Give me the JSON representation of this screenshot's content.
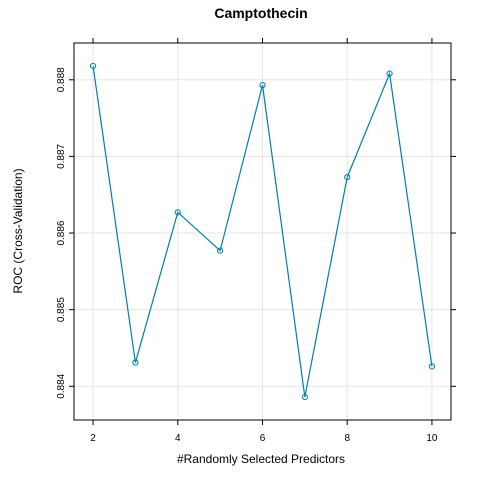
{
  "chart_data": {
    "type": "line",
    "title": "Camptothecin",
    "xlabel": "#Randomly Selected Predictors",
    "ylabel": "ROC (Cross-Validation)",
    "xlim": [
      1.55,
      10.45
    ],
    "ylim": [
      0.88356,
      0.88848
    ],
    "xticks": [
      2,
      4,
      6,
      8,
      10
    ],
    "yticks": [
      0.884,
      0.885,
      0.886,
      0.887,
      0.888
    ],
    "ytick_labels": [
      "0.884",
      "0.885",
      "0.886",
      "0.887",
      "0.888"
    ],
    "grid": true,
    "series": [
      {
        "color": "#0080ad",
        "x": [
          2,
          3,
          4,
          5,
          6,
          7,
          8,
          9,
          10
        ],
        "values": [
          0.88818,
          0.88431,
          0.88627,
          0.88577,
          0.88793,
          0.88386,
          0.88673,
          0.88808,
          0.88426
        ]
      }
    ]
  }
}
